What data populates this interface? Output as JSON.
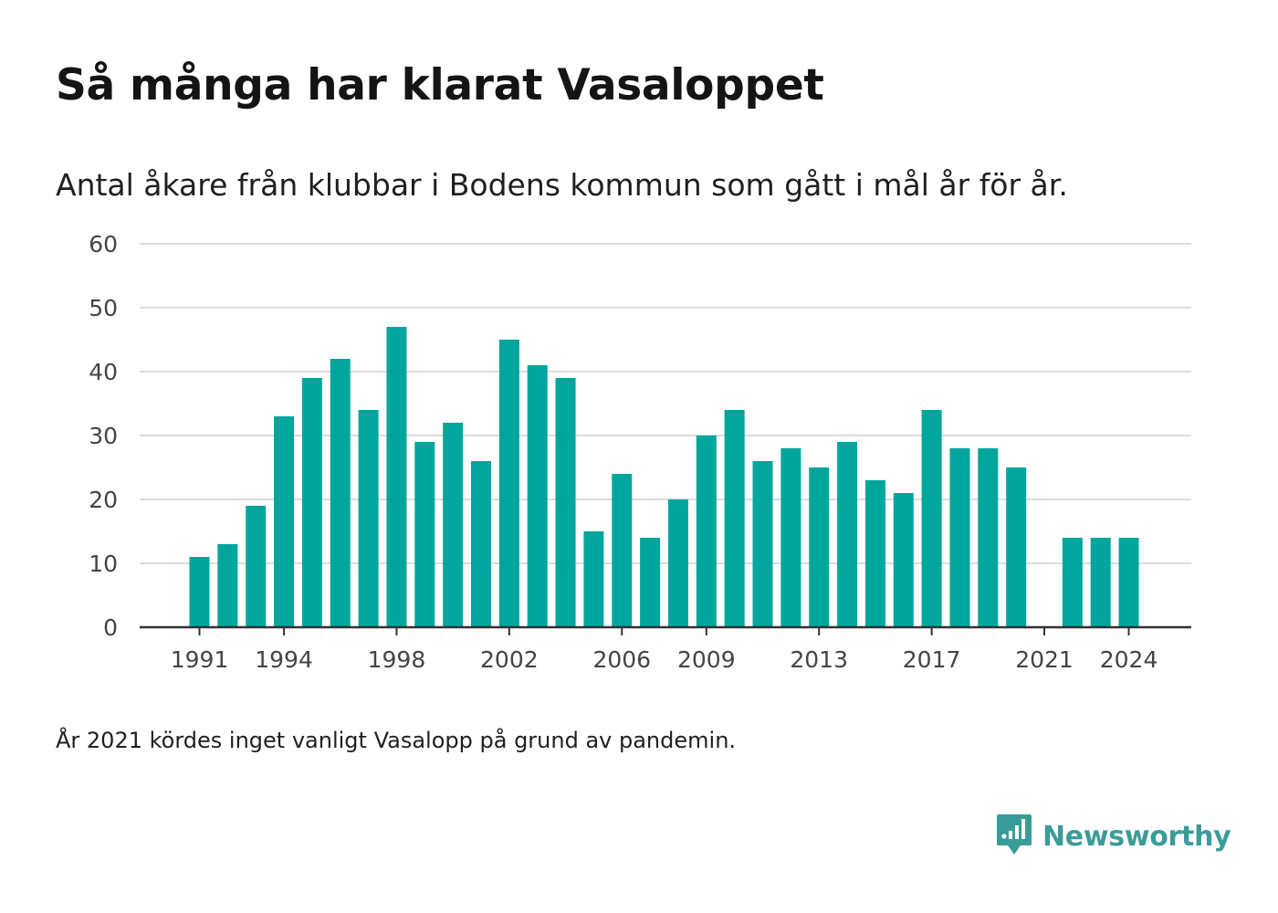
{
  "title": "Så många har klarat Vasaloppet",
  "subtitle": "Antal åkare från klubbar i Bodens kommun som gått i mål år för år.",
  "note": "År 2021 kördes inget vanligt Vasalopp på grund av pandemin.",
  "brand": {
    "name": "Newsworthy",
    "color": "#3a9c98",
    "icon": "newsworthy-logo-icon"
  },
  "colors": {
    "bar": "#00a69c",
    "grid": "#dcdcdc",
    "axis": "#333333",
    "tick_text": "#444444"
  },
  "chart_data": {
    "type": "bar",
    "title": "",
    "xlabel": "",
    "ylabel": "",
    "ylim": [
      0,
      60
    ],
    "y_ticks": [
      0,
      10,
      20,
      30,
      40,
      50,
      60
    ],
    "x_tick_labels": [
      "1991",
      "1994",
      "1998",
      "2002",
      "2006",
      "2009",
      "2013",
      "2017",
      "2021",
      "2024"
    ],
    "grid": true,
    "categories": [
      1991,
      1992,
      1993,
      1994,
      1995,
      1996,
      1997,
      1998,
      1999,
      2000,
      2001,
      2002,
      2003,
      2004,
      2005,
      2006,
      2007,
      2008,
      2009,
      2010,
      2011,
      2012,
      2013,
      2014,
      2015,
      2016,
      2017,
      2018,
      2019,
      2020,
      2021,
      2022,
      2023,
      2024
    ],
    "values": [
      11,
      13,
      19,
      33,
      39,
      42,
      34,
      47,
      29,
      32,
      26,
      45,
      41,
      39,
      15,
      24,
      14,
      20,
      30,
      34,
      26,
      28,
      25,
      29,
      23,
      21,
      34,
      28,
      28,
      25,
      0,
      14,
      14,
      14
    ]
  }
}
